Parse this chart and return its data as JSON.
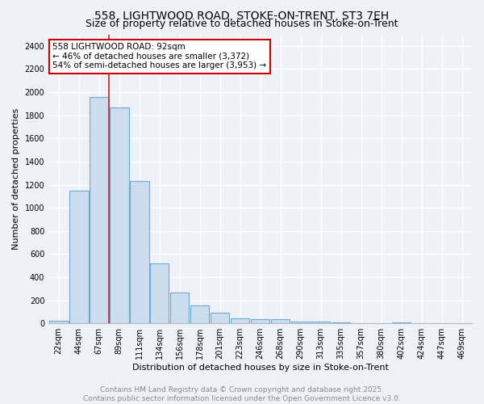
{
  "title1": "558, LIGHTWOOD ROAD, STOKE-ON-TRENT, ST3 7EH",
  "title2": "Size of property relative to detached houses in Stoke-on-Trent",
  "xlabel": "Distribution of detached houses by size in Stoke-on-Trent",
  "ylabel": "Number of detached properties",
  "categories": [
    "22sqm",
    "44sqm",
    "67sqm",
    "89sqm",
    "111sqm",
    "134sqm",
    "156sqm",
    "178sqm",
    "201sqm",
    "223sqm",
    "246sqm",
    "268sqm",
    "290sqm",
    "313sqm",
    "335sqm",
    "357sqm",
    "380sqm",
    "402sqm",
    "424sqm",
    "447sqm",
    "469sqm"
  ],
  "values": [
    20,
    1150,
    1960,
    1870,
    1230,
    520,
    270,
    155,
    90,
    45,
    35,
    35,
    18,
    14,
    5,
    3,
    2,
    5,
    2,
    2,
    1
  ],
  "bar_color": "#ccddf0",
  "bar_edge_color": "#6aaad4",
  "vline_x": 2.5,
  "vline_color": "#cc2222",
  "annotation_text": "558 LIGHTWOOD ROAD: 92sqm\n← 46% of detached houses are smaller (3,372)\n54% of semi-detached houses are larger (3,953) →",
  "annotation_box_color": "#ffffff",
  "annotation_box_edge": "#cc0000",
  "ylim": [
    0,
    2500
  ],
  "yticks": [
    0,
    200,
    400,
    600,
    800,
    1000,
    1200,
    1400,
    1600,
    1800,
    2000,
    2200,
    2400
  ],
  "footer1": "Contains HM Land Registry data © Crown copyright and database right 2025.",
  "footer2": "Contains public sector information licensed under the Open Government Licence v3.0.",
  "bg_color": "#eef2f8",
  "grid_color": "#ffffff",
  "title_fontsize": 10,
  "subtitle_fontsize": 9,
  "tick_fontsize": 7,
  "label_fontsize": 8,
  "footer_fontsize": 6.5,
  "annotation_fontsize": 7.5
}
